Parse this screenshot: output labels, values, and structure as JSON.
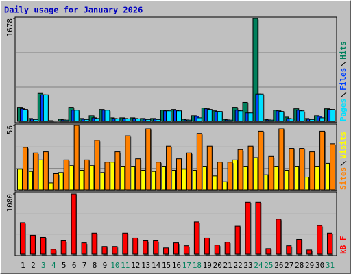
{
  "chart_data": [
    {
      "type": "bar",
      "title": "Daily usage for January 2026",
      "categories": [
        "1",
        "2",
        "3",
        "4",
        "5",
        "6",
        "7",
        "8",
        "9",
        "10",
        "11",
        "12",
        "13",
        "14",
        "15",
        "16",
        "17",
        "18",
        "19",
        "20",
        "21",
        "22",
        "23",
        "24",
        "25",
        "26",
        "27",
        "28",
        "29",
        "30",
        "31"
      ],
      "weekend": [
        3,
        4,
        10,
        11,
        17,
        18,
        24,
        25,
        31
      ],
      "ylim": [
        0,
        1678
      ],
      "yticks": [
        1678
      ],
      "grid": true,
      "series": [
        {
          "name": "Hits",
          "color": "#00805c",
          "values": [
            228,
            46,
            456,
            11,
            34,
            228,
            46,
            91,
            194,
            57,
            57,
            57,
            46,
            46,
            182,
            194,
            34,
            91,
            217,
            171,
            34,
            228,
            308,
            1678,
            34,
            182,
            68,
            205,
            46,
            91,
            205
          ]
        },
        {
          "name": "Files",
          "color": "#0040ff",
          "values": [
            205,
            34,
            433,
            6,
            23,
            182,
            34,
            57,
            182,
            46,
            46,
            46,
            34,
            34,
            171,
            182,
            23,
            80,
            205,
            160,
            23,
            182,
            137,
            445,
            23,
            171,
            46,
            182,
            34,
            80,
            194
          ]
        },
        {
          "name": "Pages",
          "color": "#00e0ff",
          "values": [
            194,
            30,
            433,
            4,
            20,
            182,
            30,
            46,
            182,
            40,
            40,
            40,
            30,
            30,
            171,
            171,
            20,
            57,
            194,
            160,
            20,
            171,
            137,
            445,
            20,
            160,
            40,
            171,
            30,
            57,
            194
          ]
        }
      ]
    },
    {
      "type": "bar",
      "ylim": [
        0,
        56
      ],
      "yticks": [
        56
      ],
      "grid": true,
      "series": [
        {
          "name": "Visits",
          "color": "#ffff00",
          "values": [
            18,
            16,
            26,
            6,
            15,
            21,
            17,
            21,
            15,
            24,
            20,
            20,
            17,
            16,
            20,
            17,
            18,
            17,
            20,
            12,
            7,
            26,
            20,
            28,
            13,
            20,
            17,
            20,
            11,
            20,
            23
          ]
        },
        {
          "name": "Sites",
          "color": "#ff8000",
          "values": [
            37,
            32,
            33,
            14,
            26,
            56,
            26,
            43,
            24,
            33,
            47,
            27,
            53,
            24,
            38,
            27,
            32,
            49,
            38,
            24,
            24,
            35,
            38,
            51,
            29,
            53,
            36,
            36,
            33,
            51,
            40
          ]
        }
      ]
    },
    {
      "type": "bar",
      "ylim": [
        0,
        1080
      ],
      "yticks": [
        1080
      ],
      "grid": true,
      "series": [
        {
          "name": "kB F",
          "color": "#ff0000",
          "values": [
            565,
            339,
            301,
            88,
            239,
            1080,
            201,
            377,
            138,
            138,
            377,
            289,
            239,
            239,
            113,
            201,
            151,
            578,
            289,
            163,
            213,
            502,
            929,
            929,
            100,
            628,
            151,
            264,
            75,
            515,
            377
          ]
        }
      ]
    }
  ]
}
